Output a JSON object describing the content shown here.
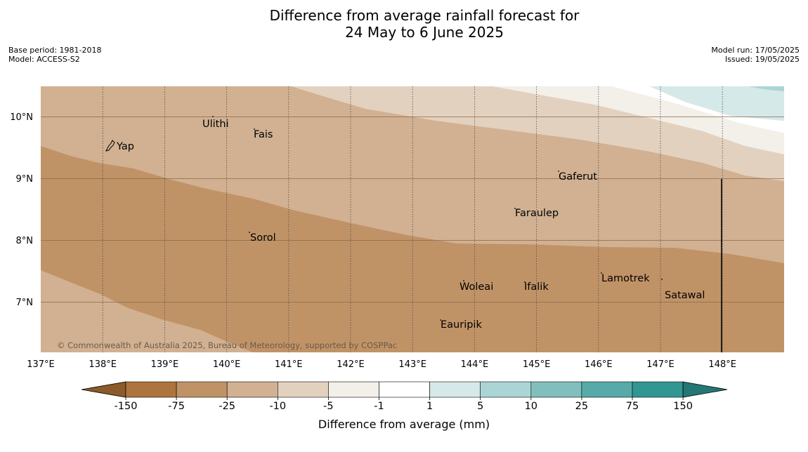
{
  "title_line1": "Difference from average rainfall forecast for",
  "title_line2": "24 May to 6 June 2025",
  "info_left": {
    "base_period": "Base period: 1981-2018",
    "model": "Model: ACCESS-S2"
  },
  "info_right": {
    "model_run": "Model run: 17/05/2025",
    "issued": "Issued: 19/05/2025"
  },
  "copyright": "© Commonwealth of Australia 2025, Bureau of Meteorology, supported by COSPPac",
  "lon_labels": [
    "137°E",
    "138°E",
    "139°E",
    "140°E",
    "141°E",
    "142°E",
    "143°E",
    "144°E",
    "145°E",
    "146°E",
    "147°E",
    "148°E"
  ],
  "lat_labels": [
    "10°N",
    "9°N",
    "8°N",
    "7°N"
  ],
  "places": [
    {
      "name": "Yap"
    },
    {
      "name": "Ulithi"
    },
    {
      "name": "Fais"
    },
    {
      "name": "Gaferut"
    },
    {
      "name": "Faraulep"
    },
    {
      "name": "Sorol"
    },
    {
      "name": "Woleai"
    },
    {
      "name": "Ifalik"
    },
    {
      "name": "Lamotrek"
    },
    {
      "name": "Satawal"
    },
    {
      "name": "Eauripik"
    }
  ],
  "colorbar": {
    "ticks": [
      "-150",
      "-75",
      "-25",
      "-10",
      "-5",
      "-1",
      "1",
      "5",
      "10",
      "25",
      "75",
      "150"
    ],
    "label": "Difference from average (mm)",
    "colors": [
      "#8c5a2b",
      "#ae743d",
      "#c09367",
      "#d1b192",
      "#e3d1bf",
      "#f3efe9",
      "#ffffff",
      "#d5e9e8",
      "#abd5d4",
      "#80bfbd",
      "#57aaa8",
      "#329693",
      "#237775"
    ]
  }
}
